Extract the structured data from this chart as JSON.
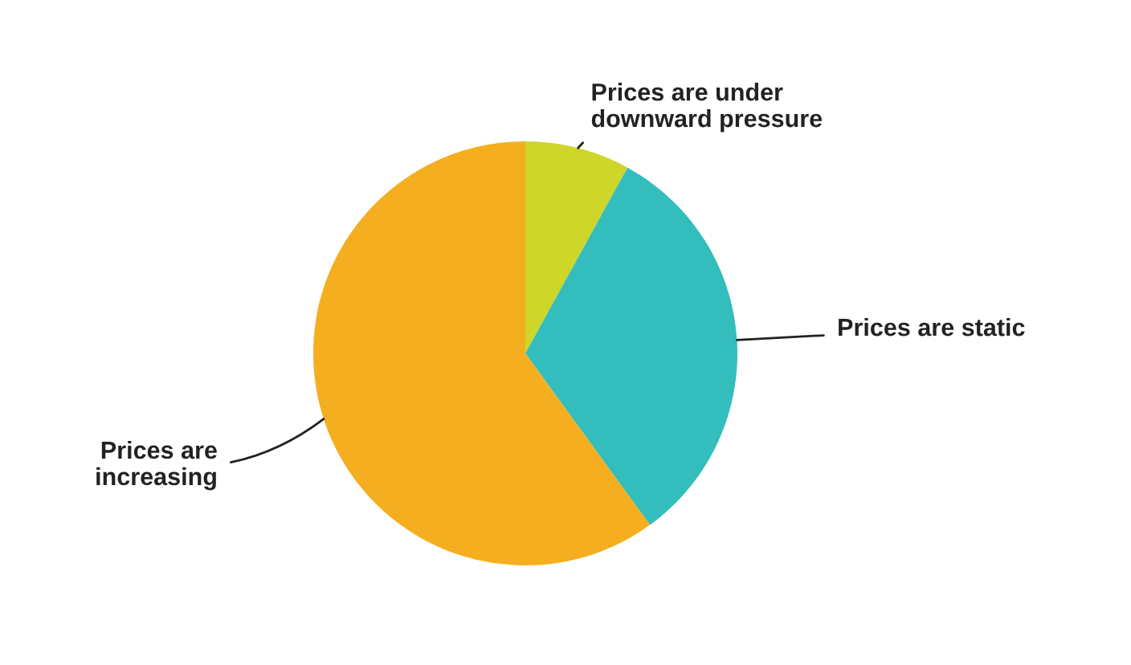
{
  "chart_data": {
    "type": "pie",
    "categories": [
      "Prices are under\ndownward pressure",
      "Prices are static",
      "Prices are\nincreasing"
    ],
    "values": [
      8,
      32,
      60
    ],
    "colors": [
      "#cdd629",
      "#33bdbd",
      "#f5ae1f"
    ]
  }
}
